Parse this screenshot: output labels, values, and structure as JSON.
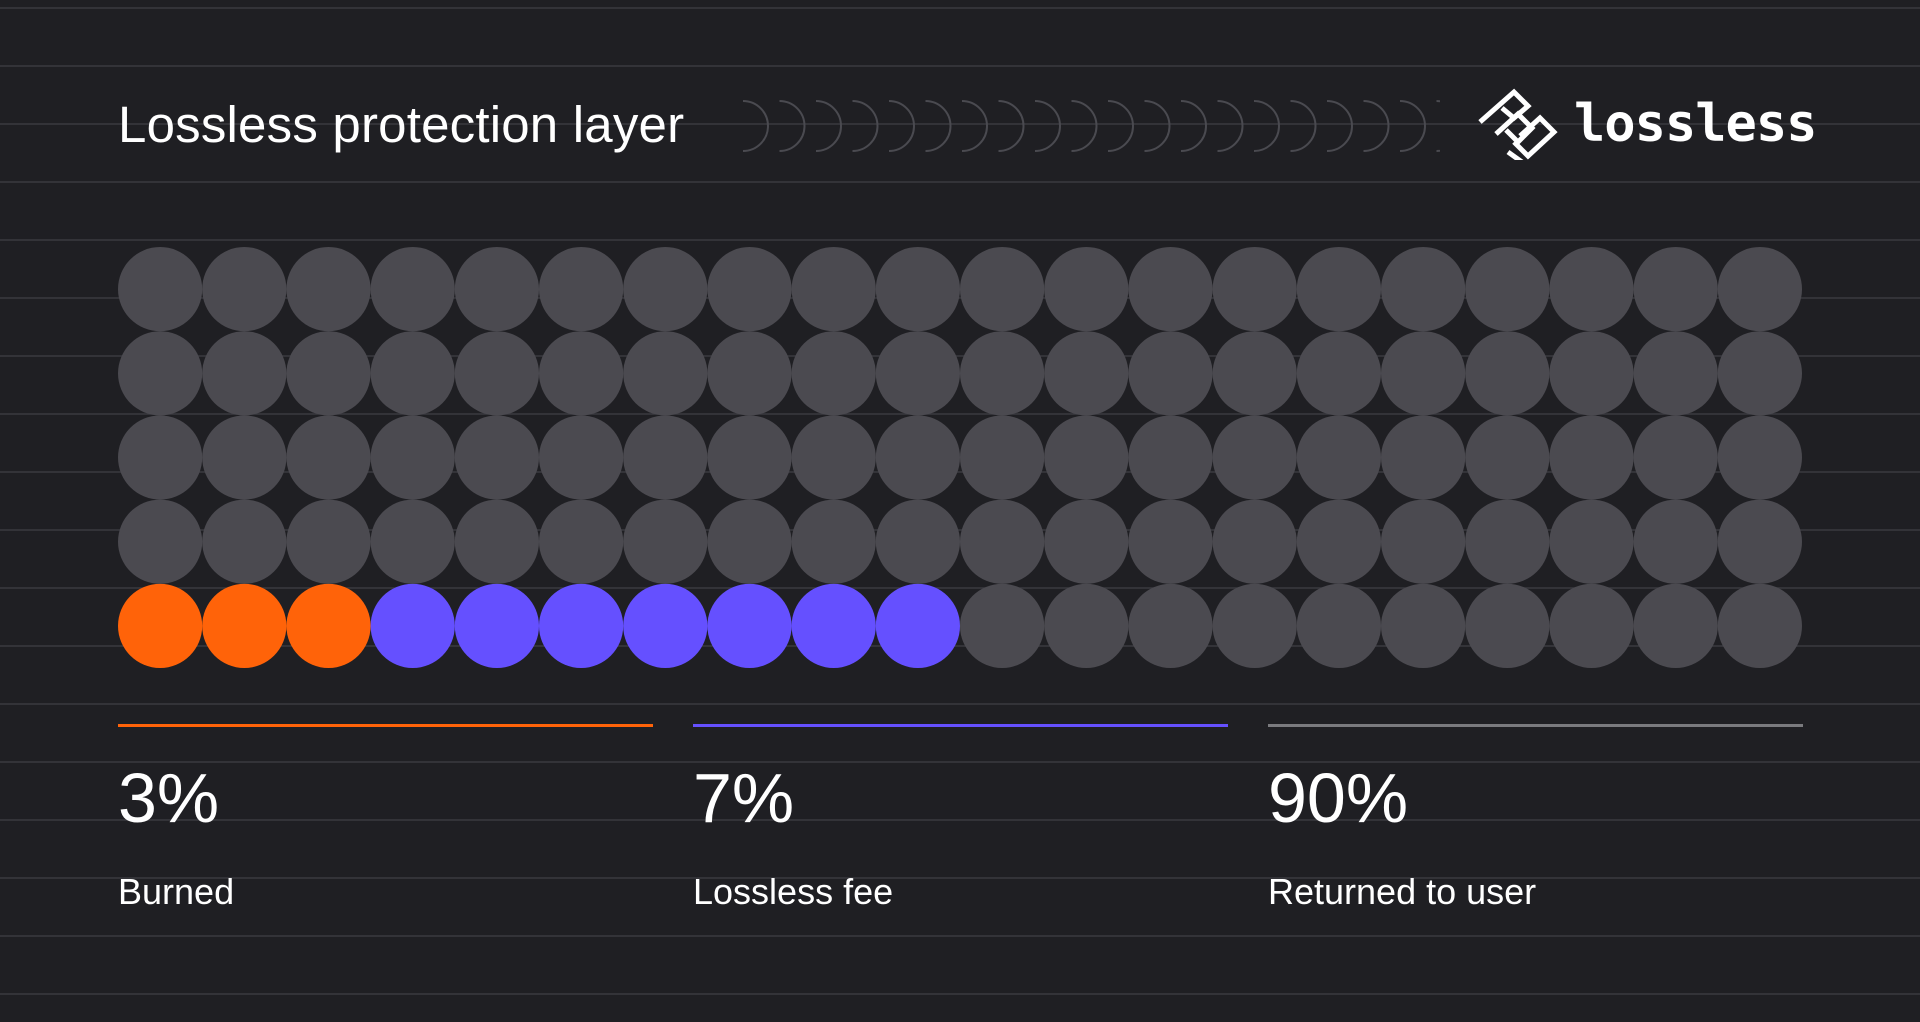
{
  "header": {
    "title": "Lossless protection layer",
    "logo_text": "lossless"
  },
  "colors": {
    "background": "#1f1f23",
    "grid_line": "#3a3a40",
    "dot_default": "#4b4a50",
    "burned": "#ff6309",
    "fee": "#6550ff",
    "returned": "#7a7a7e",
    "arc": "#4a4a50"
  },
  "chart_data": {
    "type": "waffle",
    "title": "Lossless protection layer",
    "rows": 5,
    "columns": 20,
    "total_units": 100,
    "series": [
      {
        "name": "Burned",
        "value": 3,
        "value_label": "3%",
        "color": "#ff6309"
      },
      {
        "name": "Lossless fee",
        "value": 7,
        "value_label": "7%",
        "color": "#6550ff"
      },
      {
        "name": "Returned to user",
        "value": 90,
        "value_label": "90%",
        "color": "#4b4a50"
      }
    ]
  }
}
